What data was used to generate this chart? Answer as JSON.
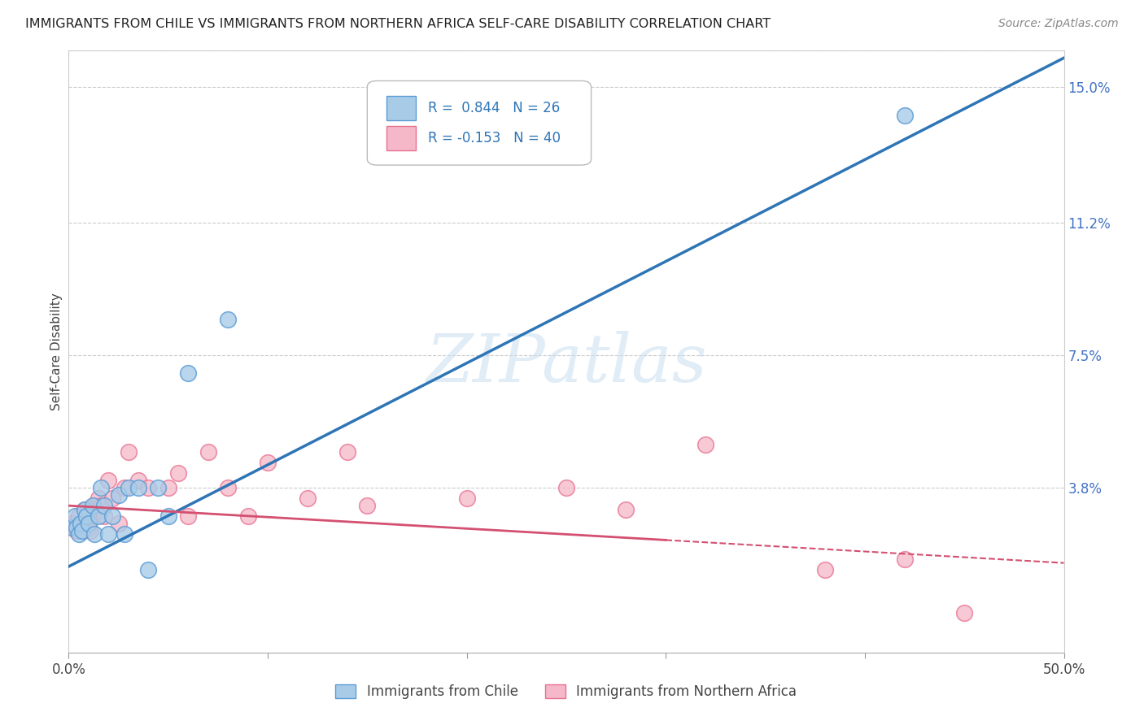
{
  "title": "IMMIGRANTS FROM CHILE VS IMMIGRANTS FROM NORTHERN AFRICA SELF-CARE DISABILITY CORRELATION CHART",
  "source": "Source: ZipAtlas.com",
  "ylabel": "Self-Care Disability",
  "xlim": [
    0.0,
    0.5
  ],
  "ylim": [
    -0.008,
    0.16
  ],
  "yticks": [
    0.0,
    0.038,
    0.075,
    0.112,
    0.15
  ],
  "ytick_labels": [
    "",
    "3.8%",
    "7.5%",
    "11.2%",
    "15.0%"
  ],
  "legend_label1": "Immigrants from Chile",
  "legend_label2": "Immigrants from Northern Africa",
  "chile_color": "#a8cce8",
  "chile_edge_color": "#5b9bd5",
  "chile_line_color": "#2e75b6",
  "nafr_color": "#f4b8c8",
  "nafr_edge_color": "#e87090",
  "nafr_line_color": "#d45070",
  "watermark": "ZIPatlas",
  "chile_R": 0.844,
  "chile_N": 26,
  "nafr_R": -0.153,
  "nafr_N": 40,
  "chile_scatter_x": [
    0.002,
    0.003,
    0.004,
    0.005,
    0.006,
    0.007,
    0.008,
    0.009,
    0.01,
    0.012,
    0.013,
    0.015,
    0.016,
    0.018,
    0.02,
    0.022,
    0.025,
    0.028,
    0.03,
    0.035,
    0.04,
    0.045,
    0.05,
    0.06,
    0.08,
    0.42
  ],
  "chile_scatter_y": [
    0.027,
    0.03,
    0.027,
    0.025,
    0.028,
    0.026,
    0.032,
    0.03,
    0.028,
    0.033,
    0.025,
    0.03,
    0.038,
    0.033,
    0.025,
    0.03,
    0.036,
    0.025,
    0.038,
    0.038,
    0.015,
    0.038,
    0.03,
    0.07,
    0.085,
    0.142
  ],
  "nafr_scatter_x": [
    0.001,
    0.002,
    0.003,
    0.004,
    0.005,
    0.006,
    0.007,
    0.008,
    0.009,
    0.01,
    0.011,
    0.012,
    0.013,
    0.015,
    0.016,
    0.018,
    0.02,
    0.022,
    0.025,
    0.028,
    0.03,
    0.035,
    0.04,
    0.05,
    0.055,
    0.06,
    0.07,
    0.08,
    0.09,
    0.1,
    0.12,
    0.14,
    0.15,
    0.2,
    0.25,
    0.28,
    0.32,
    0.38,
    0.42,
    0.45
  ],
  "nafr_scatter_y": [
    0.028,
    0.027,
    0.028,
    0.026,
    0.03,
    0.028,
    0.026,
    0.032,
    0.028,
    0.027,
    0.026,
    0.03,
    0.033,
    0.035,
    0.033,
    0.03,
    0.04,
    0.035,
    0.028,
    0.038,
    0.048,
    0.04,
    0.038,
    0.038,
    0.042,
    0.03,
    0.048,
    0.038,
    0.03,
    0.045,
    0.035,
    0.048,
    0.033,
    0.035,
    0.038,
    0.032,
    0.05,
    0.015,
    0.018,
    0.003
  ],
  "chile_trend_x0": 0.0,
  "chile_trend_y0": 0.016,
  "chile_trend_x1": 0.5,
  "chile_trend_y1": 0.158,
  "nafr_trend_x0": 0.0,
  "nafr_trend_y0": 0.033,
  "nafr_trend_x1": 0.5,
  "nafr_trend_y1": 0.017
}
